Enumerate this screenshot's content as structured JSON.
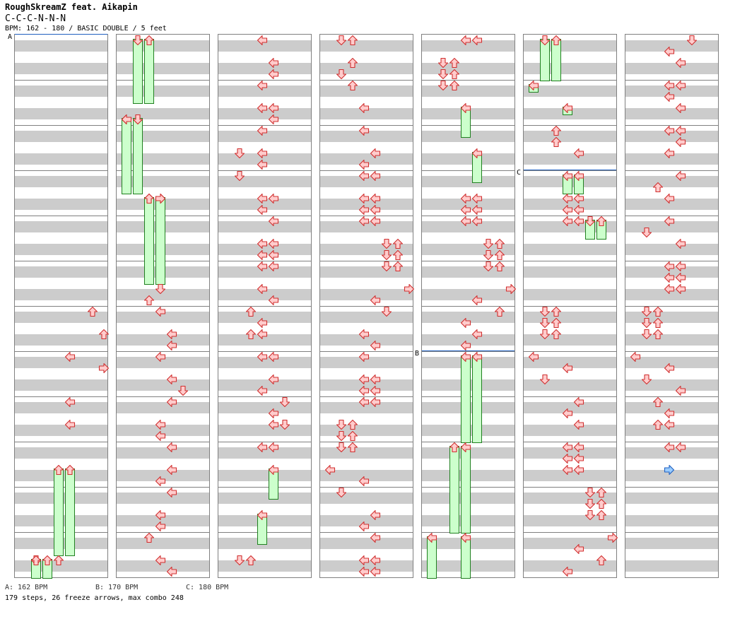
{
  "title": "RoughSkreamZ feat. Aikapin",
  "subtitle": "C-C-C-N-N-N",
  "bpm_line": "BPM: 162 - 180 / BASIC DOUBLE / 5 feet",
  "bpm_markers": [
    {
      "label": "A",
      "column": 0,
      "row": 0
    },
    {
      "label": "B",
      "column": 4,
      "row": 28
    },
    {
      "label": "C",
      "column": 5,
      "row": 12
    }
  ],
  "legend": [
    {
      "text": "A: 162 BPM"
    },
    {
      "text": "B: 170 BPM"
    },
    {
      "text": "C: 180 BPM"
    }
  ],
  "stats": "179 steps, 26 freeze arrows, max combo 248",
  "colors": {
    "arrow_fill": "#ffcccc",
    "arrow_stroke": "#d03030",
    "freeze_fill": "#ccffcc",
    "freeze_stroke": "#208020",
    "marker_arrow_fill": "#99ccff",
    "marker_arrow_stroke": "#2060c0",
    "bpm_line": "#2060c0"
  },
  "lanes": [
    "left",
    "down",
    "up",
    "right",
    "left",
    "down",
    "up",
    "right"
  ],
  "arrows": [
    [
      [
        6,
        24,
        "up"
      ],
      [
        7,
        26,
        "up"
      ],
      [
        4,
        28,
        "left"
      ],
      [
        7,
        29,
        "right"
      ],
      [
        4,
        32,
        "left"
      ],
      [
        4,
        34,
        "left"
      ],
      [
        1,
        46,
        "up"
      ],
      [
        3,
        46,
        "up"
      ]
    ],
    [
      [
        0,
        7,
        "left"
      ],
      [
        1,
        7,
        "down"
      ],
      [
        2,
        14,
        "up"
      ],
      [
        3,
        14,
        "right"
      ],
      [
        3,
        22,
        "down"
      ],
      [
        2,
        23,
        "up"
      ],
      [
        3,
        24,
        "left"
      ],
      [
        4,
        26,
        "left"
      ],
      [
        4,
        27,
        "left"
      ],
      [
        3,
        28,
        "left"
      ],
      [
        4,
        30,
        "left"
      ],
      [
        5,
        31,
        "down"
      ],
      [
        4,
        32,
        "left"
      ],
      [
        3,
        34,
        "left"
      ],
      [
        3,
        35,
        "left"
      ],
      [
        4,
        36,
        "left"
      ],
      [
        4,
        38,
        "left"
      ],
      [
        3,
        39,
        "left"
      ],
      [
        4,
        40,
        "left"
      ],
      [
        3,
        42,
        "left"
      ],
      [
        3,
        43,
        "left"
      ],
      [
        2,
        44,
        "up"
      ],
      [
        3,
        46,
        "left"
      ],
      [
        4,
        47,
        "left"
      ]
    ],
    [
      [
        3,
        0,
        "left"
      ],
      [
        4,
        2,
        "left"
      ],
      [
        4,
        3,
        "left"
      ],
      [
        3,
        4,
        "left"
      ],
      [
        3,
        6,
        "left"
      ],
      [
        4,
        6,
        "left"
      ],
      [
        4,
        7,
        "left"
      ],
      [
        3,
        8,
        "left"
      ],
      [
        1,
        10,
        "down"
      ],
      [
        3,
        10,
        "left"
      ],
      [
        3,
        11,
        "left"
      ],
      [
        1,
        12,
        "down"
      ],
      [
        3,
        14,
        "left"
      ],
      [
        4,
        14,
        "left"
      ],
      [
        3,
        15,
        "left"
      ],
      [
        4,
        16,
        "left"
      ],
      [
        3,
        18,
        "left"
      ],
      [
        4,
        18,
        "left"
      ],
      [
        3,
        19,
        "left"
      ],
      [
        4,
        19,
        "left"
      ],
      [
        3,
        20,
        "left"
      ],
      [
        4,
        20,
        "left"
      ],
      [
        3,
        22,
        "left"
      ],
      [
        4,
        23,
        "left"
      ],
      [
        2,
        24,
        "up"
      ],
      [
        3,
        25,
        "left"
      ],
      [
        2,
        26,
        "up"
      ],
      [
        3,
        26,
        "left"
      ],
      [
        3,
        28,
        "left"
      ],
      [
        4,
        28,
        "left"
      ],
      [
        4,
        30,
        "left"
      ],
      [
        3,
        31,
        "left"
      ],
      [
        5,
        32,
        "down"
      ],
      [
        4,
        33,
        "left"
      ],
      [
        4,
        34,
        "left"
      ],
      [
        5,
        34,
        "down"
      ],
      [
        3,
        36,
        "left"
      ],
      [
        4,
        36,
        "left"
      ],
      [
        1,
        46,
        "down"
      ],
      [
        2,
        46,
        "up"
      ]
    ],
    [
      [
        1,
        0,
        "down"
      ],
      [
        2,
        0,
        "up"
      ],
      [
        2,
        2,
        "up"
      ],
      [
        1,
        3,
        "down"
      ],
      [
        2,
        4,
        "up"
      ],
      [
        3,
        6,
        "left"
      ],
      [
        3,
        8,
        "left"
      ],
      [
        4,
        10,
        "left"
      ],
      [
        3,
        11,
        "left"
      ],
      [
        3,
        12,
        "left"
      ],
      [
        4,
        12,
        "left"
      ],
      [
        3,
        14,
        "left"
      ],
      [
        4,
        14,
        "left"
      ],
      [
        3,
        15,
        "left"
      ],
      [
        4,
        15,
        "left"
      ],
      [
        3,
        16,
        "left"
      ],
      [
        4,
        16,
        "left"
      ],
      [
        5,
        18,
        "down"
      ],
      [
        6,
        18,
        "up"
      ],
      [
        5,
        19,
        "down"
      ],
      [
        6,
        19,
        "up"
      ],
      [
        5,
        20,
        "down"
      ],
      [
        6,
        20,
        "up"
      ],
      [
        7,
        22,
        "right"
      ],
      [
        4,
        23,
        "left"
      ],
      [
        5,
        24,
        "down"
      ],
      [
        3,
        26,
        "left"
      ],
      [
        4,
        27,
        "left"
      ],
      [
        3,
        28,
        "left"
      ],
      [
        3,
        30,
        "left"
      ],
      [
        4,
        30,
        "left"
      ],
      [
        3,
        31,
        "left"
      ],
      [
        4,
        31,
        "left"
      ],
      [
        3,
        32,
        "left"
      ],
      [
        4,
        32,
        "left"
      ],
      [
        1,
        34,
        "down"
      ],
      [
        2,
        34,
        "up"
      ],
      [
        1,
        35,
        "down"
      ],
      [
        2,
        35,
        "up"
      ],
      [
        1,
        36,
        "down"
      ],
      [
        2,
        36,
        "up"
      ],
      [
        0,
        38,
        "left"
      ],
      [
        3,
        39,
        "left"
      ],
      [
        1,
        40,
        "down"
      ],
      [
        4,
        42,
        "left"
      ],
      [
        3,
        43,
        "left"
      ],
      [
        4,
        44,
        "left"
      ],
      [
        3,
        46,
        "left"
      ],
      [
        4,
        46,
        "left"
      ],
      [
        3,
        47,
        "left"
      ],
      [
        4,
        47,
        "left"
      ]
    ],
    [
      [
        3,
        0,
        "left"
      ],
      [
        4,
        0,
        "left"
      ],
      [
        1,
        2,
        "down"
      ],
      [
        2,
        2,
        "up"
      ],
      [
        1,
        3,
        "down"
      ],
      [
        2,
        3,
        "up"
      ],
      [
        1,
        4,
        "down"
      ],
      [
        2,
        4,
        "up"
      ],
      [
        3,
        14,
        "left"
      ],
      [
        4,
        14,
        "left"
      ],
      [
        3,
        15,
        "left"
      ],
      [
        4,
        15,
        "left"
      ],
      [
        3,
        16,
        "left"
      ],
      [
        4,
        16,
        "left"
      ],
      [
        5,
        18,
        "down"
      ],
      [
        6,
        18,
        "up"
      ],
      [
        5,
        19,
        "down"
      ],
      [
        6,
        19,
        "up"
      ],
      [
        5,
        20,
        "down"
      ],
      [
        6,
        20,
        "up"
      ],
      [
        7,
        22,
        "right"
      ],
      [
        4,
        23,
        "left"
      ],
      [
        6,
        24,
        "up"
      ],
      [
        3,
        25,
        "left"
      ],
      [
        4,
        26,
        "left"
      ],
      [
        3,
        27,
        "left"
      ]
    ],
    [
      [
        2,
        8,
        "up"
      ],
      [
        2,
        9,
        "up"
      ],
      [
        4,
        10,
        "left"
      ],
      [
        3,
        14,
        "left"
      ],
      [
        4,
        14,
        "left"
      ],
      [
        3,
        15,
        "left"
      ],
      [
        4,
        15,
        "left"
      ],
      [
        3,
        16,
        "left"
      ],
      [
        4,
        16,
        "left"
      ],
      [
        1,
        24,
        "down"
      ],
      [
        2,
        24,
        "up"
      ],
      [
        1,
        25,
        "down"
      ],
      [
        2,
        25,
        "up"
      ],
      [
        1,
        26,
        "down"
      ],
      [
        2,
        26,
        "up"
      ],
      [
        0,
        28,
        "left"
      ],
      [
        3,
        29,
        "left"
      ],
      [
        1,
        30,
        "down"
      ],
      [
        4,
        32,
        "left"
      ],
      [
        3,
        33,
        "left"
      ],
      [
        4,
        34,
        "left"
      ],
      [
        3,
        36,
        "left"
      ],
      [
        4,
        36,
        "left"
      ],
      [
        3,
        37,
        "left"
      ],
      [
        4,
        37,
        "left"
      ],
      [
        3,
        38,
        "left"
      ],
      [
        4,
        38,
        "left"
      ],
      [
        5,
        40,
        "down"
      ],
      [
        6,
        40,
        "up"
      ],
      [
        5,
        41,
        "down"
      ],
      [
        6,
        41,
        "up"
      ],
      [
        5,
        42,
        "down"
      ],
      [
        6,
        42,
        "up"
      ],
      [
        7,
        44,
        "right"
      ],
      [
        4,
        45,
        "left"
      ],
      [
        6,
        46,
        "up"
      ],
      [
        3,
        47,
        "left"
      ]
    ],
    [
      [
        5,
        0,
        "down"
      ],
      [
        3,
        1,
        "left"
      ],
      [
        4,
        2,
        "left"
      ],
      [
        3,
        4,
        "left"
      ],
      [
        4,
        4,
        "left"
      ],
      [
        3,
        5,
        "left"
      ],
      [
        4,
        6,
        "left"
      ],
      [
        3,
        8,
        "left"
      ],
      [
        4,
        8,
        "left"
      ],
      [
        4,
        9,
        "left"
      ],
      [
        3,
        10,
        "left"
      ],
      [
        4,
        12,
        "left"
      ],
      [
        2,
        13,
        "up"
      ],
      [
        3,
        14,
        "left"
      ],
      [
        3,
        16,
        "left"
      ],
      [
        1,
        17,
        "down"
      ],
      [
        4,
        18,
        "left"
      ],
      [
        3,
        20,
        "left"
      ],
      [
        4,
        20,
        "left"
      ],
      [
        3,
        21,
        "left"
      ],
      [
        4,
        21,
        "left"
      ],
      [
        3,
        22,
        "left"
      ],
      [
        4,
        22,
        "left"
      ],
      [
        1,
        24,
        "down"
      ],
      [
        2,
        24,
        "up"
      ],
      [
        1,
        25,
        "down"
      ],
      [
        2,
        25,
        "up"
      ],
      [
        1,
        26,
        "down"
      ],
      [
        2,
        26,
        "up"
      ],
      [
        0,
        28,
        "left"
      ],
      [
        3,
        29,
        "left"
      ],
      [
        1,
        30,
        "down"
      ],
      [
        4,
        31,
        "left"
      ],
      [
        2,
        32,
        "up"
      ],
      [
        3,
        33,
        "left"
      ],
      [
        2,
        34,
        "up"
      ],
      [
        3,
        34,
        "left"
      ],
      [
        3,
        36,
        "left"
      ],
      [
        4,
        36,
        "left"
      ],
      [
        3,
        38,
        "marker"
      ]
    ]
  ],
  "freezes": [
    [
      [
        3,
        38,
        46,
        "up"
      ],
      [
        4,
        38,
        46,
        "up"
      ],
      [
        1,
        46,
        48,
        "down"
      ],
      [
        2,
        46,
        48,
        "up"
      ]
    ],
    [
      [
        1,
        0,
        6,
        "down"
      ],
      [
        2,
        0,
        6,
        "up"
      ],
      [
        0,
        7,
        14,
        "left"
      ],
      [
        1,
        7,
        14,
        "down"
      ],
      [
        2,
        14,
        22,
        "up"
      ],
      [
        3,
        14,
        22,
        "right"
      ]
    ],
    [
      [
        4,
        38,
        41,
        "left"
      ],
      [
        3,
        42,
        45,
        "left"
      ]
    ],
    [],
    [
      [
        3,
        6,
        9,
        "left"
      ],
      [
        4,
        10,
        13,
        "left"
      ],
      [
        3,
        28,
        36,
        "left"
      ],
      [
        4,
        28,
        36,
        "left"
      ],
      [
        2,
        36,
        44,
        "up"
      ],
      [
        3,
        36,
        44,
        "left"
      ],
      [
        0,
        44,
        48,
        "left"
      ],
      [
        3,
        44,
        48,
        "left"
      ]
    ],
    [
      [
        1,
        0,
        4,
        "down"
      ],
      [
        2,
        0,
        4,
        "up"
      ],
      [
        0,
        4,
        5,
        "left"
      ],
      [
        3,
        6,
        7,
        "left"
      ],
      [
        3,
        12,
        14,
        "left"
      ],
      [
        4,
        12,
        14,
        "left"
      ],
      [
        5,
        16,
        18,
        "down"
      ],
      [
        6,
        16,
        18,
        "up"
      ]
    ],
    []
  ]
}
